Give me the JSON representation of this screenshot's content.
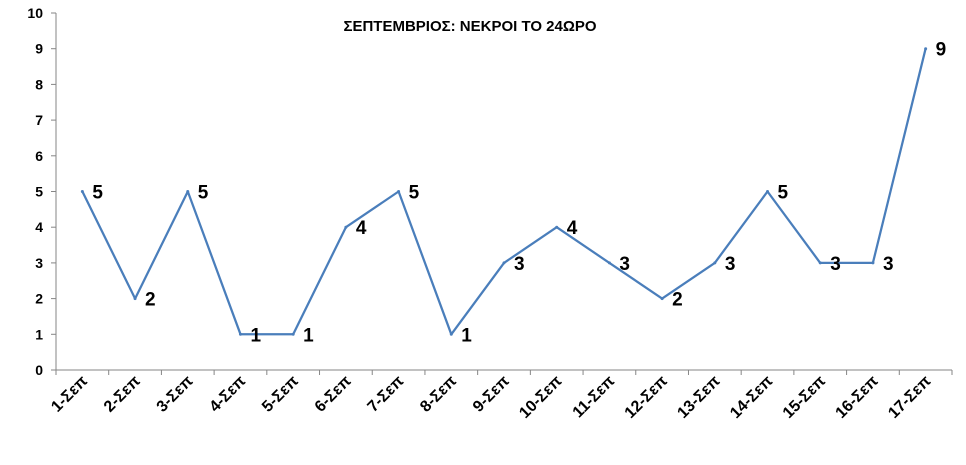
{
  "chart_data": {
    "type": "line",
    "title": "ΣΕΠΤΕΜΒΡΙΟΣ: ΝΕΚΡΟΙ ΤΟ 24ΩΡΟ",
    "categories": [
      "1-Σεπ",
      "2-Σεπ",
      "3-Σεπ",
      "4-Σεπ",
      "5-Σεπ",
      "6-Σεπ",
      "7-Σεπ",
      "8-Σεπ",
      "9-Σεπ",
      "10-Σεπ",
      "11-Σεπ",
      "12-Σεπ",
      "13-Σεπ",
      "14-Σεπ",
      "15-Σεπ",
      "16-Σεπ",
      "17-Σεπ"
    ],
    "series": [
      {
        "values": [
          5,
          2,
          5,
          1,
          1,
          4,
          5,
          1,
          3,
          4,
          3,
          2,
          3,
          5,
          3,
          3,
          9
        ]
      }
    ],
    "ylim": [
      0,
      10
    ],
    "yticks": [
      0,
      1,
      2,
      3,
      4,
      5,
      6,
      7,
      8,
      9,
      10
    ],
    "grid": false,
    "legend": "none",
    "line_color": "#4a7ebb"
  }
}
